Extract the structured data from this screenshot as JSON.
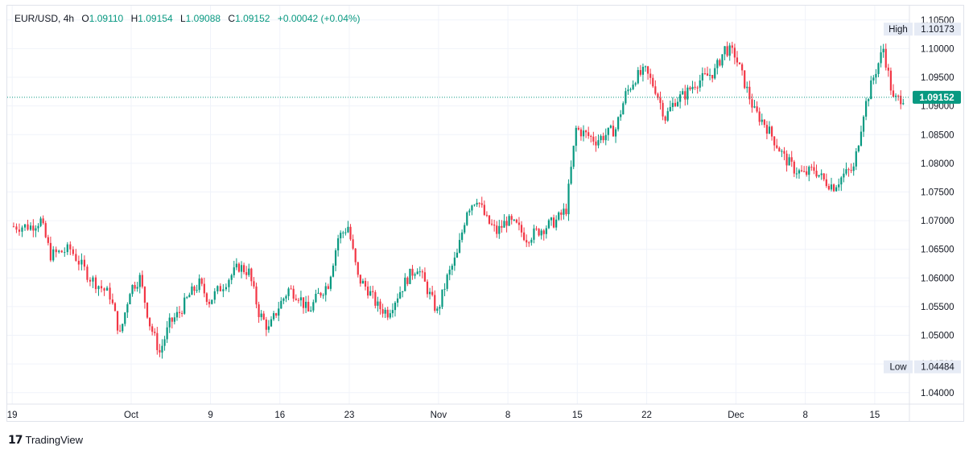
{
  "legend": {
    "symbol": "EUR/USD",
    "interval": "4h",
    "open_key": "O",
    "open": "1.09110",
    "high_key": "H",
    "high": "1.09154",
    "low_key": "L",
    "low": "1.09088",
    "close_key": "C",
    "close": "1.09152",
    "change": "+0.00042 (+0.04%)"
  },
  "branding": {
    "name": "TradingView"
  },
  "colors": {
    "up": "#089981",
    "down": "#f23645",
    "grid": "#f0f3fa",
    "price_tag": "#089981",
    "tag_bg": "#e6ebf5"
  },
  "chart_data": {
    "type": "candlestick",
    "title": "EUR/USD, 4h",
    "y_range": [
      1.038,
      1.1075
    ],
    "y_ticks": [
      "1.04000",
      "1.04500",
      "1.05000",
      "1.05500",
      "1.06000",
      "1.06500",
      "1.07000",
      "1.07500",
      "1.08000",
      "1.08500",
      "1.09000",
      "1.09500",
      "1.10000",
      "1.10500"
    ],
    "x_ticks": [
      {
        "label": "19",
        "day": 0
      },
      {
        "label": "Oct",
        "day": 12
      },
      {
        "label": "9",
        "day": 20
      },
      {
        "label": "16",
        "day": 27
      },
      {
        "label": "23",
        "day": 34
      },
      {
        "label": "Nov",
        "day": 43
      },
      {
        "label": "8",
        "day": 50
      },
      {
        "label": "15",
        "day": 57
      },
      {
        "label": "22",
        "day": 64
      },
      {
        "label": "Dec",
        "day": 73
      },
      {
        "label": "8",
        "day": 80
      },
      {
        "label": "15",
        "day": 87
      }
    ],
    "x_day_range": [
      -0.5,
      90.5
    ],
    "last_price": "1.09152",
    "high_label": "High",
    "high_value": "1.10173",
    "low_label": "Low",
    "low_value": "1.04484",
    "path": [
      [
        0,
        1.069
      ],
      [
        2,
        1.069
      ],
      [
        3,
        1.07
      ],
      [
        4,
        1.064
      ],
      [
        6,
        1.065
      ],
      [
        8,
        1.06
      ],
      [
        10,
        1.057
      ],
      [
        11,
        1.05
      ],
      [
        12,
        1.058
      ],
      [
        13,
        1.06
      ],
      [
        14,
        1.052
      ],
      [
        15,
        1.047
      ],
      [
        16,
        1.052
      ],
      [
        17,
        1.054
      ],
      [
        18,
        1.057
      ],
      [
        19,
        1.059
      ],
      [
        20,
        1.056
      ],
      [
        22,
        1.06
      ],
      [
        23,
        1.062
      ],
      [
        24,
        1.061
      ],
      [
        25,
        1.054
      ],
      [
        26,
        1.051
      ],
      [
        27,
        1.055
      ],
      [
        28,
        1.058
      ],
      [
        29,
        1.057
      ],
      [
        30,
        1.054
      ],
      [
        31,
        1.057
      ],
      [
        32,
        1.059
      ],
      [
        33,
        1.067
      ],
      [
        34,
        1.069
      ],
      [
        35,
        1.06
      ],
      [
        36,
        1.058
      ],
      [
        37,
        1.055
      ],
      [
        38,
        1.054
      ],
      [
        39,
        1.057
      ],
      [
        40,
        1.06
      ],
      [
        41,
        1.062
      ],
      [
        42,
        1.058
      ],
      [
        43,
        1.054
      ],
      [
        44,
        1.06
      ],
      [
        45,
        1.064
      ],
      [
        46,
        1.072
      ],
      [
        47,
        1.074
      ],
      [
        48,
        1.07
      ],
      [
        49,
        1.068
      ],
      [
        50,
        1.07
      ],
      [
        51,
        1.069
      ],
      [
        52,
        1.067
      ],
      [
        53,
        1.068
      ],
      [
        54,
        1.069
      ],
      [
        55,
        1.07
      ],
      [
        56,
        1.072
      ],
      [
        57,
        1.086
      ],
      [
        58,
        1.085
      ],
      [
        59,
        1.084
      ],
      [
        60,
        1.085
      ],
      [
        61,
        1.086
      ],
      [
        62,
        1.092
      ],
      [
        63,
        1.095
      ],
      [
        64,
        1.096
      ],
      [
        65,
        1.093
      ],
      [
        66,
        1.088
      ],
      [
        67,
        1.091
      ],
      [
        68,
        1.092
      ],
      [
        69,
        1.094
      ],
      [
        70,
        1.095
      ],
      [
        71,
        1.096
      ],
      [
        72,
        1.1
      ],
      [
        73,
        1.099
      ],
      [
        74,
        1.094
      ],
      [
        75,
        1.089
      ],
      [
        76,
        1.087
      ],
      [
        77,
        1.084
      ],
      [
        78,
        1.081
      ],
      [
        79,
        1.079
      ],
      [
        80,
        1.078
      ],
      [
        81,
        1.079
      ],
      [
        82,
        1.077
      ],
      [
        83,
        1.076
      ],
      [
        84,
        1.078
      ],
      [
        85,
        1.079
      ],
      [
        86,
        1.089
      ],
      [
        87,
        1.095
      ],
      [
        88,
        1.1
      ],
      [
        89,
        1.091
      ],
      [
        90,
        1.0915
      ]
    ]
  }
}
